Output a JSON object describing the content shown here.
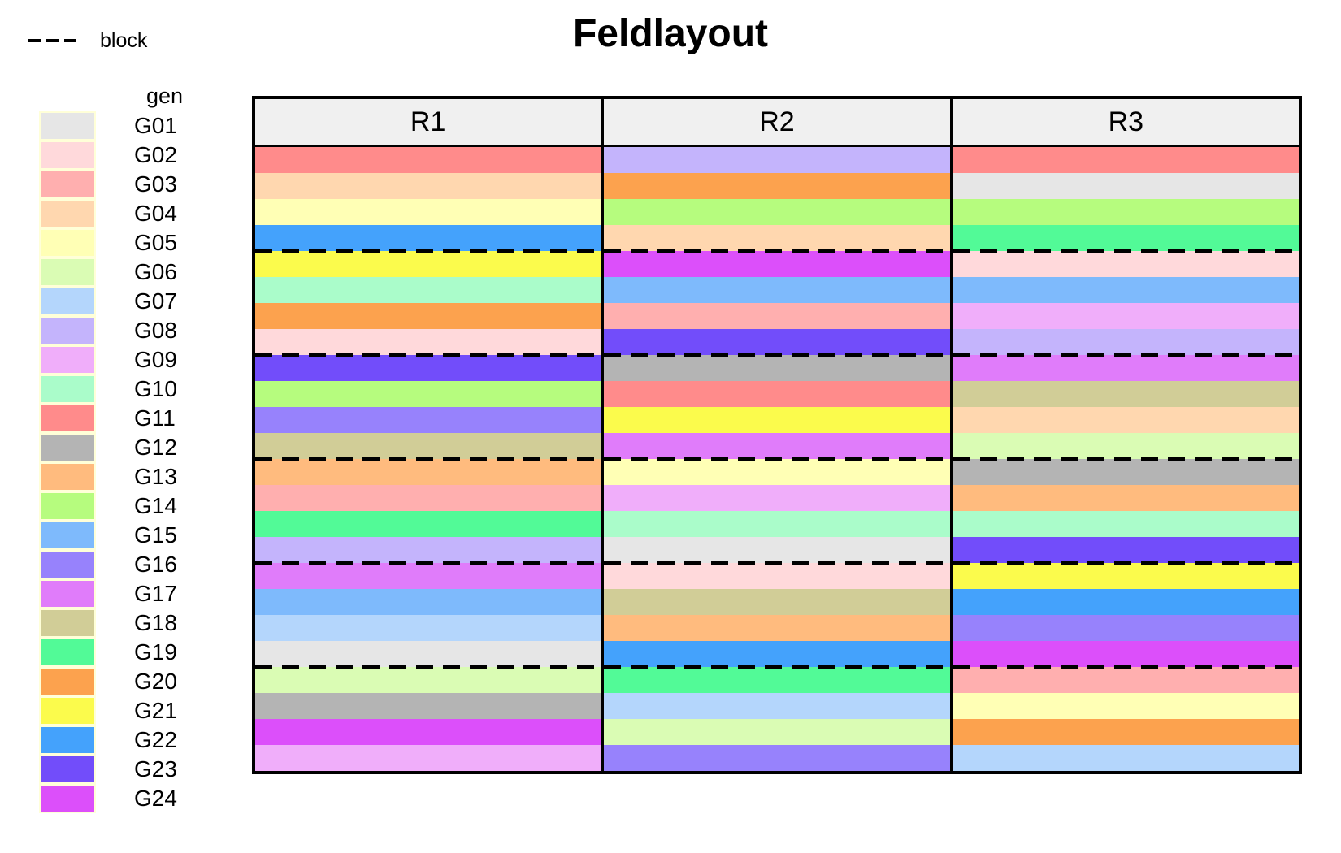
{
  "title": "Feldlayout",
  "legend_block": {
    "label": "block",
    "line_style": "dashed",
    "line_color": "#000000"
  },
  "legend_gen": {
    "title": "gen",
    "items": [
      "G01",
      "G02",
      "G03",
      "G04",
      "G05",
      "G06",
      "G07",
      "G08",
      "G09",
      "G10",
      "G11",
      "G12",
      "G13",
      "G14",
      "G15",
      "G16",
      "G17",
      "G18",
      "G19",
      "G20",
      "G21",
      "G22",
      "G23",
      "G24"
    ]
  },
  "colors": {
    "G01": "#E6E6E6",
    "G02": "#FFD9DB",
    "G03": "#FFAFAF",
    "G04": "#FFD7AF",
    "G05": "#FFFFB5",
    "G06": "#DAFCB4",
    "G07": "#B4D6FC",
    "G08": "#C4B4FC",
    "G09": "#F0AEFA",
    "G10": "#AAFCCA",
    "G11": "#FF8B8B",
    "G12": "#B4B4B4",
    "G13": "#FFBB7E",
    "G14": "#B6FC7E",
    "G15": "#7EBAFC",
    "G16": "#9782FC",
    "G17": "#E07CFA",
    "G18": "#D1CD97",
    "G19": "#52FA97",
    "G20": "#FCA24E",
    "G21": "#FBFB4C",
    "G22": "#44A2FC",
    "G23": "#724DFA",
    "G24": "#DC4FFA"
  },
  "style": {
    "header_bg": "#F0F0F0",
    "border_color": "#000000",
    "legend_frame": "#FFFFD8"
  },
  "chart_data": {
    "type": "heatmap",
    "title": "Feldlayout",
    "description": "Field trial layout: 3 replicate columns (R1-R3), each with 24 genotype plots stacked vertically; dashed lines mark block boundaries every 4 plots (6 blocks per replicate); legend of genotype colors on the left.",
    "columns": [
      "R1",
      "R2",
      "R3"
    ],
    "rows_per_column": 24,
    "block_size": 4,
    "blocks_per_column": 6,
    "legend_position": "left",
    "cells": {
      "R1": [
        "G11",
        "G04",
        "G05",
        "G22",
        "G21",
        "G10",
        "G20",
        "G02",
        "G23",
        "G14",
        "G16",
        "G18",
        "G13",
        "G03",
        "G19",
        "G08",
        "G17",
        "G15",
        "G07",
        "G01",
        "G06",
        "G12",
        "G24",
        "G09"
      ],
      "R2": [
        "G08",
        "G20",
        "G14",
        "G04",
        "G24",
        "G15",
        "G03",
        "G23",
        "G12",
        "G11",
        "G21",
        "G17",
        "G05",
        "G09",
        "G10",
        "G01",
        "G02",
        "G18",
        "G13",
        "G22",
        "G19",
        "G07",
        "G06",
        "G16"
      ],
      "R3": [
        "G11",
        "G01",
        "G14",
        "G19",
        "G02",
        "G15",
        "G09",
        "G08",
        "G17",
        "G18",
        "G04",
        "G06",
        "G12",
        "G13",
        "G10",
        "G23",
        "G21",
        "G22",
        "G16",
        "G24",
        "G03",
        "G05",
        "G20",
        "G07"
      ]
    }
  }
}
